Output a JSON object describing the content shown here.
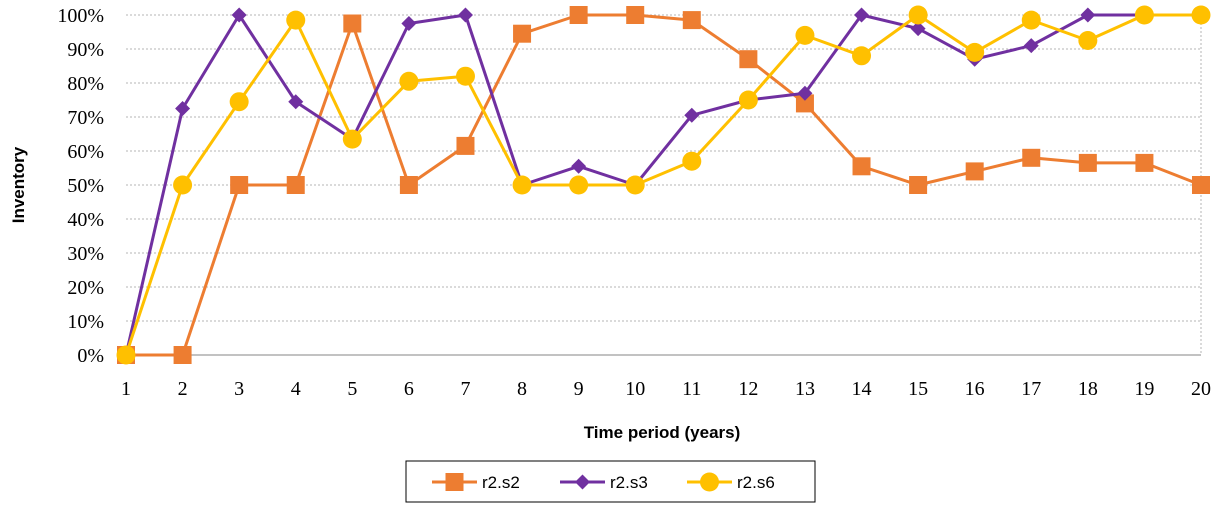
{
  "chart_data": {
    "type": "line",
    "title": "",
    "xlabel": "Time period (years)",
    "ylabel": "Inventory",
    "x": [
      1,
      2,
      3,
      4,
      5,
      6,
      7,
      8,
      9,
      10,
      11,
      12,
      13,
      14,
      15,
      16,
      17,
      18,
      19,
      20
    ],
    "xlim": [
      1,
      20
    ],
    "ylim": [
      0,
      100
    ],
    "y_ticks": [
      "0%",
      "10%",
      "20%",
      "30%",
      "40%",
      "50%",
      "60%",
      "70%",
      "80%",
      "90%",
      "100%"
    ],
    "grid": "horizontal dashed",
    "legend_position": "bottom",
    "series": [
      {
        "name": "r2.s2",
        "color": "#ED7D31",
        "marker": "square",
        "values": [
          0,
          0,
          50,
          50,
          97.5,
          50,
          61.5,
          94.5,
          100,
          100,
          98.5,
          87,
          74,
          55.5,
          50,
          54,
          58,
          56.5,
          56.5,
          50
        ]
      },
      {
        "name": "r2.s3",
        "color": "#7030A0",
        "marker": "diamond",
        "values": [
          0,
          72.5,
          100,
          74.5,
          63.5,
          97.5,
          100,
          50,
          55.5,
          50,
          70.5,
          75,
          77,
          100,
          96,
          87,
          91,
          100,
          100,
          100
        ]
      },
      {
        "name": "r2.s6",
        "color": "#FFC000",
        "marker": "circle",
        "values": [
          0,
          50,
          74.5,
          98.5,
          63.5,
          80.5,
          82,
          50,
          50,
          50,
          57,
          75,
          94,
          88,
          100,
          89,
          98.5,
          92.5,
          100,
          100
        ]
      }
    ]
  }
}
